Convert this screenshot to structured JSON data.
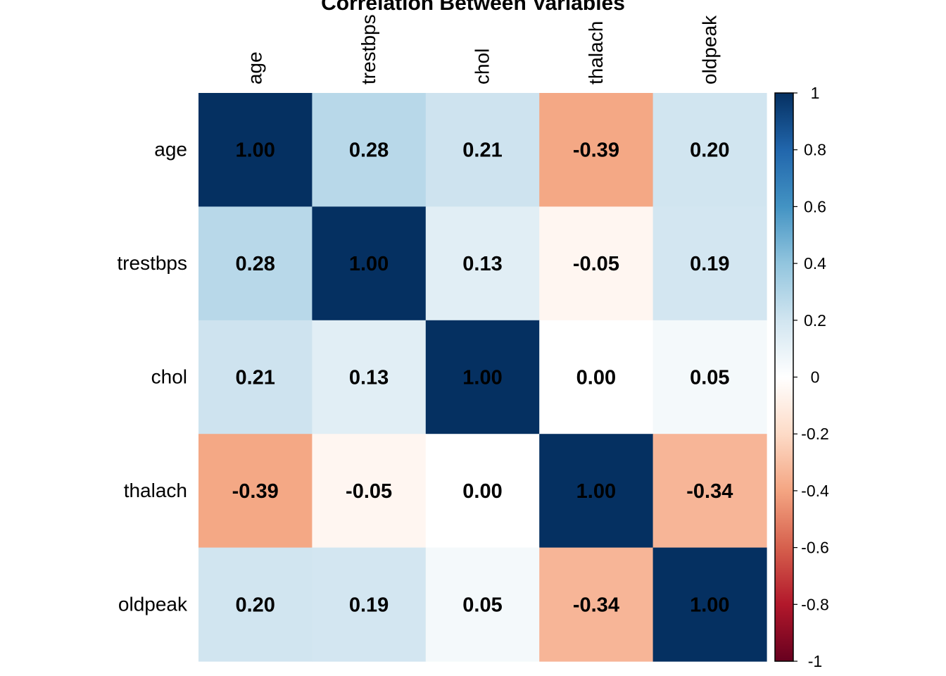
{
  "chart_data": {
    "type": "heatmap",
    "title": "Correlation Between Variables",
    "variables": [
      "age",
      "trestbps",
      "chol",
      "thalach",
      "oldpeak"
    ],
    "matrix": [
      [
        1.0,
        0.28,
        0.21,
        -0.39,
        0.2
      ],
      [
        0.28,
        1.0,
        0.13,
        -0.05,
        0.19
      ],
      [
        0.21,
        0.13,
        1.0,
        0.0,
        0.05
      ],
      [
        -0.39,
        -0.05,
        0.0,
        1.0,
        -0.34
      ],
      [
        0.2,
        0.19,
        0.05,
        -0.34,
        1.0
      ]
    ],
    "value_labels": [
      [
        "1.00",
        "0.28",
        "0.21",
        "-0.39",
        "0.20"
      ],
      [
        "0.28",
        "1.00",
        "0.13",
        "-0.05",
        "0.19"
      ],
      [
        "0.21",
        "0.13",
        "1.00",
        "0.00",
        "0.05"
      ],
      [
        "-0.39",
        "-0.05",
        "0.00",
        "1.00",
        "-0.34"
      ],
      [
        "0.20",
        "0.19",
        "0.05",
        "-0.34",
        "1.00"
      ]
    ],
    "value_label_color": "#000000",
    "colorbar": {
      "range": [
        -1,
        1
      ],
      "position": "right",
      "ticks": [
        1,
        0.8,
        0.6,
        0.4,
        0.2,
        0,
        -0.2,
        -0.4,
        -0.6,
        -0.8,
        -1
      ],
      "tick_labels": [
        "1",
        "0.8",
        "0.6",
        "0.4",
        "0.2",
        "0",
        "-0.2",
        "-0.4",
        "-0.6",
        "-0.8",
        "-1"
      ],
      "palette": {
        "stops": [
          -1,
          -0.8,
          -0.6,
          -0.4,
          -0.2,
          0,
          0.2,
          0.4,
          0.6,
          0.8,
          1
        ],
        "colors": [
          "#67001F",
          "#B2182B",
          "#D6604D",
          "#F4A582",
          "#FDDBC7",
          "#FFFFFF",
          "#D1E5F0",
          "#92C5DE",
          "#4393C3",
          "#2166AC",
          "#053061"
        ]
      }
    },
    "column_label_rotation": "vertical",
    "grid": false
  }
}
